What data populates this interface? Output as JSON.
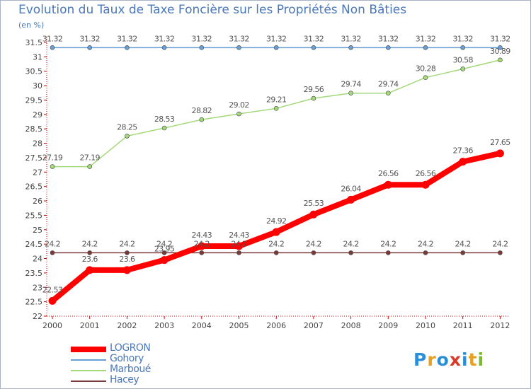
{
  "chart_data": {
    "type": "line",
    "title": "Evolution du Taux de Taxe Foncière sur les Propriétés Non Bâties",
    "ylabel": "(en %)",
    "x": [
      "2000",
      "2001",
      "2002",
      "2003",
      "2004",
      "2005",
      "2006",
      "2007",
      "2008",
      "2009",
      "2010",
      "2011",
      "2012"
    ],
    "ylim": [
      22,
      31.5
    ],
    "yticks": [
      "22",
      "22.5",
      "23",
      "23.5",
      "24",
      "24.5",
      "25",
      "25.5",
      "26",
      "26.5",
      "27",
      "27.5",
      "28",
      "28.5",
      "29",
      "29.5",
      "30",
      "30.5",
      "31",
      "31.5"
    ],
    "grid": false,
    "legend": "bottom-left",
    "series": [
      {
        "name": "LOGRON",
        "color": "#ff0000",
        "values": [
          22.53,
          23.6,
          23.6,
          23.95,
          24.43,
          24.43,
          24.92,
          25.53,
          26.04,
          26.56,
          26.56,
          27.36,
          27.65
        ],
        "labels": [
          "22.53",
          "23.6",
          "23.6",
          "23.95",
          "24.43",
          "24.43",
          "24.92",
          "25.53",
          "26.04",
          "26.56",
          "26.56",
          "27.36",
          "27.65"
        ]
      },
      {
        "name": "Gohory",
        "color": "#6a9fd4",
        "values": [
          31.32,
          31.32,
          31.32,
          31.32,
          31.32,
          31.32,
          31.32,
          31.32,
          31.32,
          31.32,
          31.32,
          31.32,
          31.32
        ],
        "labels": [
          "31.32",
          "31.32",
          "31.32",
          "31.32",
          "31.32",
          "31.32",
          "31.32",
          "31.32",
          "31.32",
          "31.32",
          "31.32",
          "31.32",
          "31.32"
        ]
      },
      {
        "name": "Marboué",
        "color": "#a3d97a",
        "values": [
          27.19,
          27.19,
          28.25,
          28.53,
          28.82,
          29.02,
          29.21,
          29.56,
          29.74,
          29.74,
          30.28,
          30.58,
          30.89
        ],
        "labels": [
          "27.19",
          "27.19",
          "28.25",
          "28.53",
          "28.82",
          "29.02",
          "29.21",
          "29.56",
          "29.74",
          "29.74",
          "30.28",
          "30.58",
          "30.89"
        ]
      },
      {
        "name": "Hacey",
        "color": "#7a3a3a",
        "values": [
          24.2,
          24.2,
          24.2,
          24.2,
          24.2,
          24.2,
          24.2,
          24.2,
          24.2,
          24.2,
          24.2,
          24.2,
          24.2
        ],
        "labels": [
          "24.2",
          "24.2",
          "24.2",
          "24.2",
          "24.2",
          "24.2",
          "24.2",
          "24.2",
          "24.2",
          "24.2",
          "24.2",
          "24.2",
          "24.2"
        ]
      }
    ]
  },
  "brand": {
    "letters": [
      "P",
      "r",
      "o",
      "x",
      "i",
      "t",
      "i"
    ],
    "colors": [
      "#2a8fd8",
      "#e8a020",
      "#2a8fd8",
      "#d83a2a",
      "#2a8fd8",
      "#e8a020",
      "#7ab83a"
    ]
  }
}
